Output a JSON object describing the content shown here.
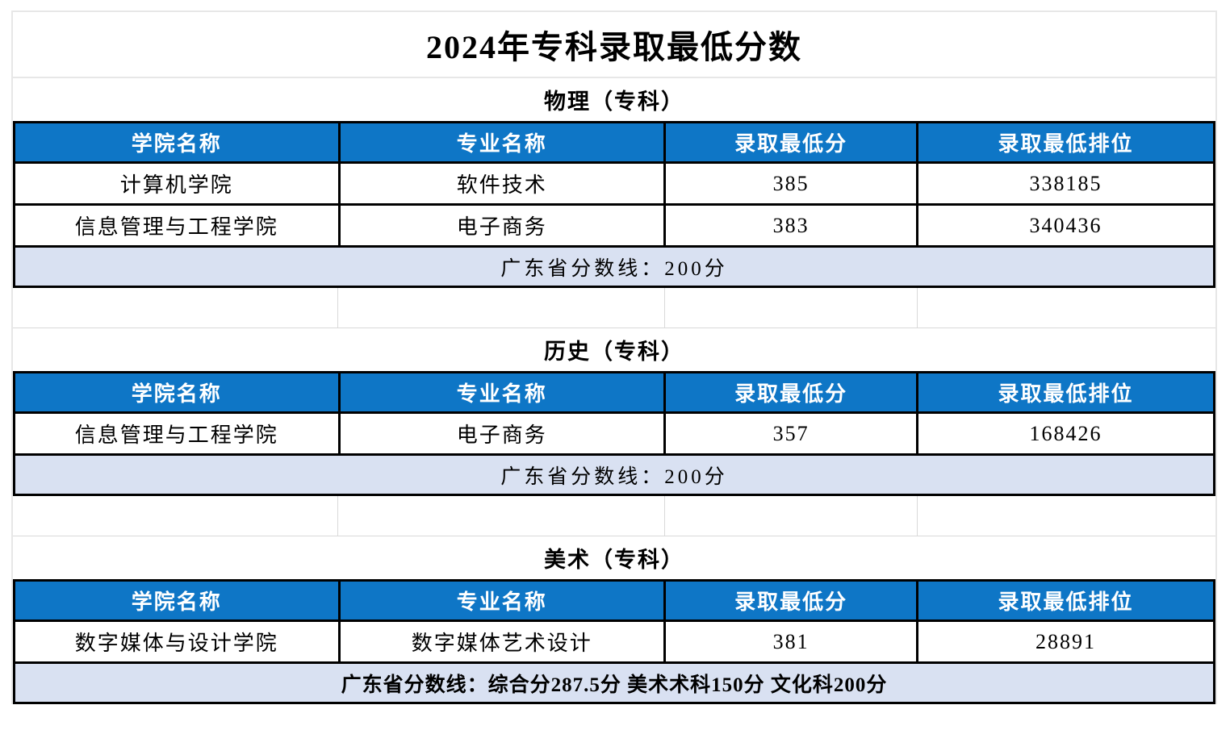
{
  "title": "2024年专科录取最低分数",
  "columns": {
    "college": "学院名称",
    "major": "专业名称",
    "min_score": "录取最低分",
    "min_rank": "录取最低排位"
  },
  "sections": [
    {
      "name": "物理（专科）",
      "rows": [
        {
          "college": "计算机学院",
          "major": "软件技术",
          "min_score": "385",
          "min_rank": "338185"
        },
        {
          "college": "信息管理与工程学院",
          "major": "电子商务",
          "min_score": "383",
          "min_rank": "340436"
        }
      ],
      "note": "广东省分数线：200分"
    },
    {
      "name": "历史（专科）",
      "rows": [
        {
          "college": "信息管理与工程学院",
          "major": "电子商务",
          "min_score": "357",
          "min_rank": "168426"
        }
      ],
      "note": "广东省分数线：200分"
    },
    {
      "name": "美术（专科）",
      "rows": [
        {
          "college": "数字媒体与设计学院",
          "major": "数字媒体艺术设计",
          "min_score": "381",
          "min_rank": "28891"
        }
      ],
      "note": "广东省分数线：综合分287.5分  美术术科150分  文化科200分"
    }
  ],
  "colors": {
    "header_bg": "#0e76c6",
    "header_fg": "#ffffff",
    "note_bg": "#d9e1f2",
    "table_border": "#000000",
    "gridline": "#d9d9d9",
    "sheet_border": "#e7e7e7"
  }
}
